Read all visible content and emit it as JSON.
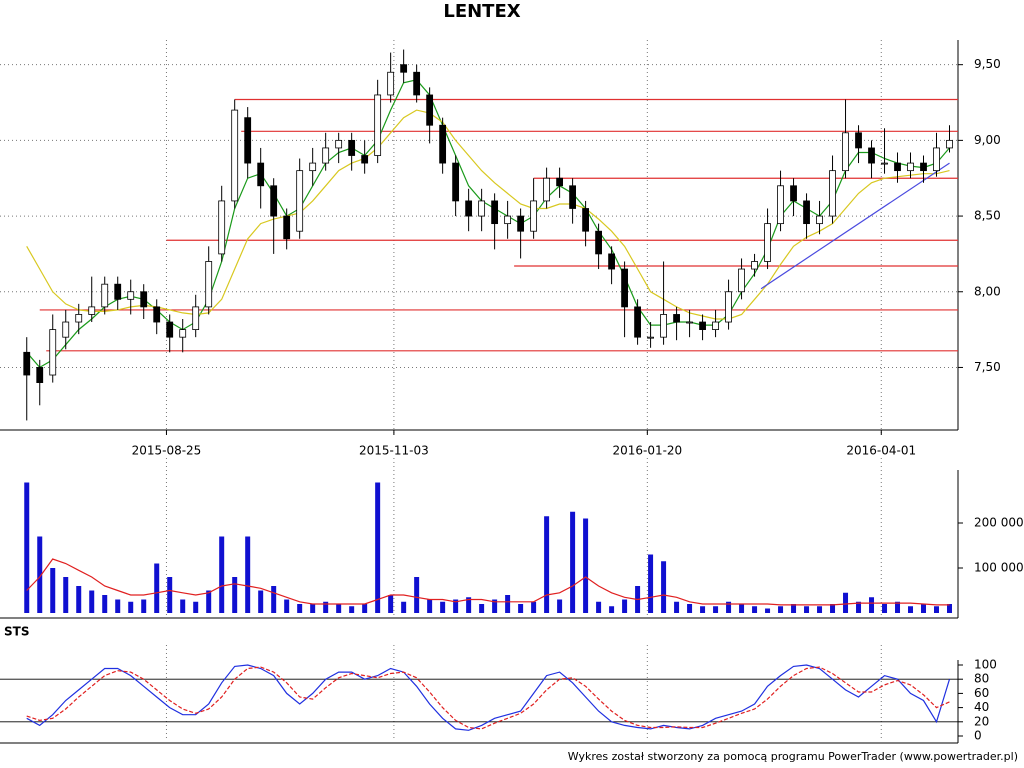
{
  "chart_data": {
    "title": "LENTEX",
    "footer": "Wykres został stworzony za pomocą programu PowerTrader (www.powertrader.pl)",
    "x": [
      "2015-07-13",
      "2015-07-17",
      "2015-07-21",
      "2015-07-25",
      "2015-07-29",
      "2015-08-02",
      "2015-08-06",
      "2015-08-10",
      "2015-08-14",
      "2015-08-18",
      "2015-08-22",
      "2015-08-26",
      "2015-08-30",
      "2015-09-03",
      "2015-09-07",
      "2015-09-11",
      "2015-09-15",
      "2015-09-19",
      "2015-09-23",
      "2015-09-27",
      "2015-10-01",
      "2015-10-05",
      "2015-10-09",
      "2015-10-13",
      "2015-10-17",
      "2015-10-21",
      "2015-10-25",
      "2015-10-29",
      "2015-11-02",
      "2015-11-06",
      "2015-11-10",
      "2015-11-14",
      "2015-11-18",
      "2015-11-22",
      "2015-11-26",
      "2015-11-30",
      "2015-12-04",
      "2015-12-08",
      "2015-12-12",
      "2015-12-16",
      "2015-12-20",
      "2015-12-24",
      "2015-12-28",
      "2016-01-01",
      "2016-01-05",
      "2016-01-09",
      "2016-01-13",
      "2016-01-17",
      "2016-01-21",
      "2016-01-25",
      "2016-01-29",
      "2016-02-02",
      "2016-02-06",
      "2016-02-10",
      "2016-02-14",
      "2016-02-18",
      "2016-02-22",
      "2016-02-26",
      "2016-03-01",
      "2016-03-05",
      "2016-03-09",
      "2016-03-13",
      "2016-03-17",
      "2016-03-21",
      "2016-03-25",
      "2016-03-29",
      "2016-04-02",
      "2016-04-06",
      "2016-04-10",
      "2016-04-14",
      "2016-04-18",
      "2016-04-22"
    ],
    "xlim": [
      "2015-07-06",
      "2016-04-24"
    ],
    "xticks": [
      "2015-08-25",
      "2015-11-03",
      "2016-01-20",
      "2016-04-01"
    ],
    "panels": [
      {
        "type": "candlestick",
        "grid": true,
        "up_color": "#ffffff",
        "down_color": "#000000",
        "ylim": [
          7.1,
          9.63
        ],
        "yticks": [
          {
            "value": 7.5,
            "label": "7,50"
          },
          {
            "value": 8,
            "label": "8,00"
          },
          {
            "value": 8.5,
            "label": "8,50"
          },
          {
            "value": 9,
            "label": "9,00"
          },
          {
            "value": 9.5,
            "label": "9,50"
          }
        ],
        "open": [
          7.6,
          7.5,
          7.45,
          7.7,
          7.8,
          7.85,
          7.9,
          8.05,
          7.95,
          8.0,
          7.9,
          7.8,
          7.7,
          7.75,
          7.9,
          8.25,
          8.6,
          9.15,
          8.85,
          8.7,
          8.5,
          8.4,
          8.8,
          8.85,
          8.95,
          9.0,
          8.9,
          8.9,
          9.3,
          9.5,
          9.45,
          9.3,
          9.1,
          8.85,
          8.6,
          8.5,
          8.6,
          8.45,
          8.5,
          8.4,
          8.6,
          8.75,
          8.7,
          8.55,
          8.4,
          8.25,
          8.15,
          7.9,
          7.7,
          7.7,
          7.85,
          7.8,
          7.8,
          7.75,
          7.8,
          8.0,
          8.15,
          8.2,
          8.45,
          8.7,
          8.6,
          8.45,
          8.5,
          8.8,
          9.05,
          8.95,
          8.85,
          8.85,
          8.8,
          8.85,
          8.8,
          8.95
        ],
        "high": [
          7.7,
          7.55,
          7.85,
          7.88,
          7.92,
          8.1,
          8.1,
          8.1,
          8.08,
          8.05,
          7.95,
          7.85,
          7.82,
          7.98,
          8.3,
          8.7,
          9.27,
          9.22,
          8.95,
          8.75,
          8.55,
          8.88,
          8.95,
          9.05,
          9.05,
          9.05,
          9.0,
          9.4,
          9.58,
          9.6,
          9.5,
          9.35,
          9.15,
          8.9,
          8.68,
          8.68,
          8.65,
          8.6,
          8.55,
          8.75,
          8.82,
          8.82,
          8.75,
          8.6,
          8.45,
          8.3,
          8.2,
          7.95,
          7.8,
          8.2,
          7.9,
          7.88,
          7.85,
          7.88,
          8.08,
          8.22,
          8.25,
          8.55,
          8.8,
          8.75,
          8.65,
          8.6,
          8.9,
          9.27,
          9.1,
          9.0,
          9.08,
          8.92,
          8.92,
          8.9,
          9.05,
          9.1
        ],
        "low": [
          7.15,
          7.25,
          7.4,
          7.62,
          7.72,
          7.8,
          7.85,
          7.88,
          7.85,
          7.82,
          7.72,
          7.6,
          7.6,
          7.7,
          7.85,
          8.2,
          8.55,
          8.75,
          8.55,
          8.25,
          8.28,
          8.35,
          8.7,
          8.8,
          8.85,
          8.8,
          8.78,
          8.85,
          9.25,
          9.38,
          9.25,
          8.98,
          8.78,
          8.5,
          8.4,
          8.4,
          8.28,
          8.35,
          8.22,
          8.35,
          8.55,
          8.62,
          8.45,
          8.3,
          8.15,
          8.05,
          7.7,
          7.65,
          7.63,
          7.65,
          7.68,
          7.7,
          7.68,
          7.7,
          7.75,
          7.95,
          8.1,
          8.15,
          8.4,
          8.5,
          8.35,
          8.38,
          8.45,
          8.75,
          8.85,
          8.75,
          8.78,
          8.72,
          8.75,
          8.72,
          8.76,
          8.92
        ],
        "close": [
          7.45,
          7.4,
          7.75,
          7.8,
          7.85,
          7.9,
          8.05,
          7.95,
          8.0,
          7.9,
          7.8,
          7.7,
          7.75,
          7.9,
          8.2,
          8.6,
          9.2,
          8.85,
          8.7,
          8.5,
          8.35,
          8.8,
          8.85,
          8.95,
          9.0,
          8.9,
          8.85,
          9.3,
          9.45,
          9.45,
          9.3,
          9.1,
          8.85,
          8.6,
          8.5,
          8.6,
          8.45,
          8.5,
          8.4,
          8.6,
          8.75,
          8.7,
          8.55,
          8.4,
          8.25,
          8.15,
          7.9,
          7.7,
          7.7,
          7.85,
          7.8,
          7.8,
          7.75,
          7.8,
          8.0,
          8.15,
          8.2,
          8.45,
          8.7,
          8.6,
          8.45,
          8.5,
          8.8,
          9.05,
          8.95,
          8.85,
          8.85,
          8.8,
          8.85,
          8.8,
          8.95,
          9.0
        ],
        "series": [
          {
            "color": "#1a9a1a",
            "values": [
              7.6,
              7.5,
              7.55,
              7.65,
              7.75,
              7.82,
              7.9,
              7.95,
              7.97,
              7.95,
              7.88,
              7.8,
              7.75,
              7.8,
              7.95,
              8.2,
              8.55,
              8.75,
              8.78,
              8.65,
              8.5,
              8.55,
              8.7,
              8.85,
              8.92,
              8.95,
              8.9,
              9.0,
              9.2,
              9.38,
              9.4,
              9.3,
              9.1,
              8.9,
              8.7,
              8.6,
              8.55,
              8.5,
              8.45,
              8.5,
              8.62,
              8.7,
              8.65,
              8.55,
              8.4,
              8.28,
              8.1,
              7.9,
              7.78,
              7.78,
              7.8,
              7.8,
              7.78,
              7.78,
              7.85,
              8.0,
              8.12,
              8.28,
              8.5,
              8.6,
              8.55,
              8.5,
              8.6,
              8.8,
              8.92,
              8.92,
              8.88,
              8.85,
              8.83,
              8.82,
              8.85,
              8.95
            ]
          },
          {
            "color": "#d8c820",
            "values": [
              8.3,
              8.15,
              8.0,
              7.92,
              7.88,
              7.87,
              7.87,
              7.88,
              7.9,
              7.91,
              7.9,
              7.88,
              7.86,
              7.85,
              7.86,
              7.95,
              8.15,
              8.35,
              8.45,
              8.48,
              8.5,
              8.52,
              8.6,
              8.7,
              8.8,
              8.85,
              8.88,
              8.95,
              9.05,
              9.15,
              9.2,
              9.18,
              9.12,
              9.0,
              8.9,
              8.8,
              8.72,
              8.65,
              8.58,
              8.55,
              8.55,
              8.58,
              8.58,
              8.55,
              8.48,
              8.4,
              8.3,
              8.15,
              8.0,
              7.95,
              7.9,
              7.86,
              7.84,
              7.82,
              7.82,
              7.85,
              7.95,
              8.05,
              8.18,
              8.3,
              8.36,
              8.4,
              8.45,
              8.55,
              8.65,
              8.72,
              8.75,
              8.76,
              8.77,
              8.78,
              8.78,
              8.8
            ]
          }
        ],
        "level_color": "#e03030",
        "levels": [
          {
            "value": 9.27,
            "from": "2015-09-15"
          },
          {
            "value": 9.06,
            "from": "2015-09-17"
          },
          {
            "value": 8.75,
            "from": "2015-12-16"
          },
          {
            "value": 8.34,
            "from": "2015-08-25"
          },
          {
            "value": 8.17,
            "from": "2015-12-10"
          },
          {
            "value": 7.88,
            "from": "2015-07-17"
          },
          {
            "value": 7.61,
            "from": "2015-07-19"
          }
        ],
        "trendline": {
          "color": "#4a4adf",
          "x": [
            "2016-02-24",
            "2016-04-22"
          ],
          "values": [
            8.02,
            8.85
          ]
        }
      },
      {
        "type": "bar",
        "color": "#1010d0",
        "ylim": [
          0,
          300000
        ],
        "yticks": [
          {
            "value": 100000,
            "label": "100 000"
          },
          {
            "value": 200000,
            "label": "200 000"
          }
        ],
        "values": [
          290000,
          170000,
          100000,
          80000,
          60000,
          50000,
          40000,
          30000,
          25000,
          30000,
          110000,
          80000,
          30000,
          25000,
          50000,
          170000,
          80000,
          170000,
          50000,
          60000,
          30000,
          20000,
          20000,
          25000,
          20000,
          15000,
          20000,
          290000,
          40000,
          25000,
          80000,
          30000,
          25000,
          30000,
          35000,
          20000,
          30000,
          40000,
          20000,
          25000,
          215000,
          30000,
          225000,
          210000,
          25000,
          15000,
          30000,
          60000,
          130000,
          115000,
          25000,
          20000,
          15000,
          15000,
          25000,
          20000,
          15000,
          10000,
          15000,
          20000,
          15000,
          15000,
          20000,
          45000,
          25000,
          35000,
          20000,
          25000,
          15000,
          20000,
          15000,
          20000
        ],
        "series": [
          {
            "color": "#e02020",
            "values": [
              50000,
              80000,
              120000,
              110000,
              95000,
              80000,
              60000,
              50000,
              40000,
              40000,
              45000,
              50000,
              45000,
              40000,
              45000,
              60000,
              65000,
              60000,
              55000,
              45000,
              35000,
              25000,
              20000,
              20000,
              20000,
              20000,
              20000,
              30000,
              40000,
              40000,
              35000,
              30000,
              30000,
              25000,
              30000,
              30000,
              25000,
              25000,
              25000,
              25000,
              40000,
              45000,
              60000,
              80000,
              60000,
              45000,
              35000,
              30000,
              35000,
              40000,
              35000,
              25000,
              20000,
              20000,
              20000,
              20000,
              20000,
              20000,
              18000,
              18000,
              18000,
              18000,
              18000,
              20000,
              22000,
              22000,
              22000,
              22000,
              22000,
              20000,
              18000,
              18000
            ]
          }
        ]
      },
      {
        "type": "line",
        "title": "STS",
        "ylim": [
          0,
          100
        ],
        "yticks": [
          0,
          20,
          40,
          60,
          80,
          100
        ],
        "levels": [
          20,
          80
        ],
        "level_color": "#000000",
        "series": [
          {
            "color": "#2030e0",
            "style": "solid",
            "values": [
              25,
              15,
              30,
              50,
              65,
              80,
              95,
              95,
              85,
              70,
              55,
              40,
              30,
              30,
              45,
              75,
              98,
              100,
              95,
              85,
              60,
              45,
              60,
              80,
              90,
              90,
              80,
              85,
              95,
              90,
              70,
              45,
              25,
              10,
              8,
              15,
              25,
              30,
              35,
              60,
              85,
              90,
              75,
              55,
              35,
              20,
              15,
              12,
              10,
              15,
              12,
              10,
              15,
              25,
              30,
              35,
              45,
              70,
              85,
              98,
              100,
              95,
              80,
              65,
              55,
              70,
              85,
              80,
              60,
              50,
              20,
              80
            ]
          },
          {
            "color": "#e02020",
            "style": "dashed",
            "values": [
              28,
              22,
              25,
              38,
              55,
              70,
              85,
              92,
              90,
              80,
              65,
              50,
              38,
              32,
              38,
              55,
              80,
              95,
              97,
              90,
              75,
              55,
              52,
              68,
              82,
              88,
              85,
              82,
              88,
              90,
              82,
              62,
              40,
              22,
              12,
              10,
              18,
              25,
              32,
              45,
              65,
              80,
              82,
              70,
              52,
              35,
              22,
              15,
              12,
              12,
              13,
              12,
              12,
              18,
              25,
              32,
              38,
              52,
              70,
              85,
              95,
              97,
              88,
              75,
              62,
              62,
              72,
              78,
              72,
              58,
              40,
              48
            ]
          }
        ]
      }
    ]
  }
}
